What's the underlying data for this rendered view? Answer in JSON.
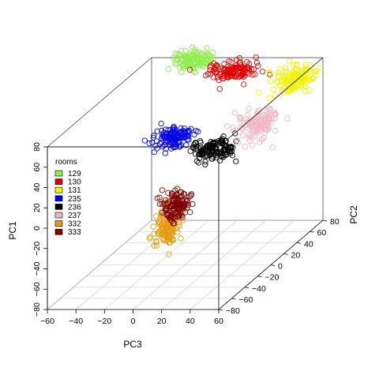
{
  "chart_data": {
    "type": "scatter",
    "title": "",
    "xlabel": "PC3",
    "ylabel": "PC2",
    "zlabel": "PC1",
    "xlim": [
      -60,
      60
    ],
    "ylim": [
      -80,
      80
    ],
    "zlim": [
      -80,
      80
    ],
    "x_ticks": [
      "−60",
      "−40",
      "−20",
      "0",
      "20",
      "40",
      "60"
    ],
    "y_ticks": [
      "−80",
      "−60",
      "−40",
      "−20",
      "0",
      "20",
      "40",
      "60",
      "80"
    ],
    "z_ticks": [
      "−80",
      "−60",
      "−40",
      "−20",
      "0",
      "20",
      "40",
      "60",
      "80"
    ],
    "grid": "floor grid on",
    "box": true,
    "marker": "open circle",
    "legend": {
      "title": "rooms",
      "placement": "left",
      "entries": [
        "129",
        "130",
        "131",
        "235",
        "236",
        "237",
        "332",
        "333"
      ]
    },
    "series": [
      {
        "name": "129",
        "color": "#90ee50",
        "center": {
          "x": -30,
          "y": 78,
          "z": 79
        },
        "spread": {
          "x": 7,
          "y": 5,
          "z": 4
        }
      },
      {
        "name": "130",
        "color": "#e00000",
        "center": {
          "x": 2,
          "y": 70,
          "z": 72
        },
        "spread": {
          "x": 8,
          "y": 5,
          "z": 4
        }
      },
      {
        "name": "131",
        "color": "#f2f200",
        "center": {
          "x": 46,
          "y": 65,
          "z": 68
        },
        "spread": {
          "x": 7,
          "y": 7,
          "z": 5
        }
      },
      {
        "name": "235",
        "color": "#0000e8",
        "center": {
          "x": -10,
          "y": 5,
          "z": 42
        },
        "spread": {
          "x": 7,
          "y": 6,
          "z": 5
        }
      },
      {
        "name": "236",
        "color": "#000000",
        "center": {
          "x": 22,
          "y": -5,
          "z": 36
        },
        "spread": {
          "x": 7,
          "y": 6,
          "z": 5
        }
      },
      {
        "name": "237",
        "color": "#f2b6c3",
        "center": {
          "x": 40,
          "y": 25,
          "z": 45
        },
        "spread": {
          "x": 6,
          "y": 8,
          "z": 6
        }
      },
      {
        "name": "332",
        "color": "#e69a10",
        "center": {
          "x": 8,
          "y": -45,
          "z": -20
        },
        "spread": {
          "x": 4,
          "y": 4,
          "z": 10
        }
      },
      {
        "name": "333",
        "color": "#800000",
        "center": {
          "x": 14,
          "y": -45,
          "z": 2
        },
        "spread": {
          "x": 4,
          "y": 4,
          "z": 7
        }
      }
    ]
  }
}
